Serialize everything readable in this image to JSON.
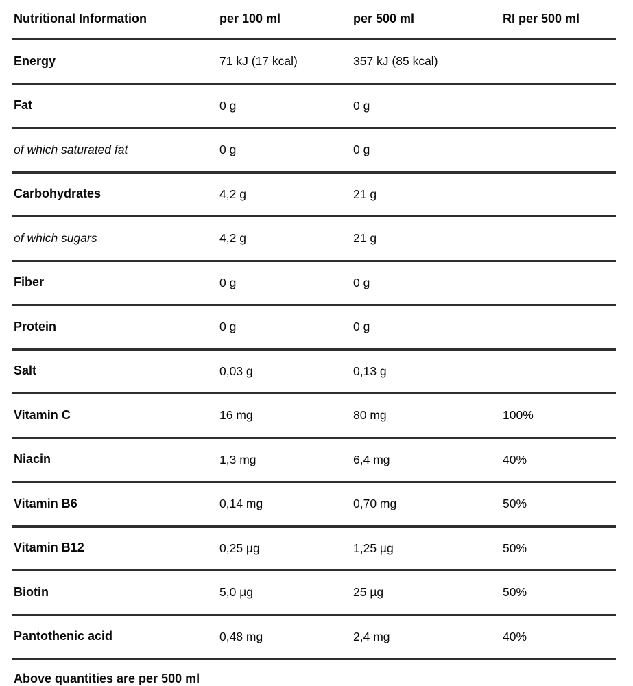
{
  "table": {
    "columns": [
      "Nutritional Information",
      "per 100 ml",
      "per 500 ml",
      "RI per 500 ml"
    ],
    "rows": [
      {
        "label": "Energy",
        "italic": false,
        "per100": "71 kJ (17 kcal)",
        "per500": "357 kJ (85 kcal)",
        "ri": ""
      },
      {
        "label": "Fat",
        "italic": false,
        "per100": "0 g",
        "per500": "0 g",
        "ri": ""
      },
      {
        "label": "of which saturated fat",
        "italic": true,
        "per100": "0 g",
        "per500": "0 g",
        "ri": ""
      },
      {
        "label": "Carbohydrates",
        "italic": false,
        "per100": "4,2 g",
        "per500": "21 g",
        "ri": ""
      },
      {
        "label": "of which sugars",
        "italic": true,
        "per100": "4,2 g",
        "per500": "21 g",
        "ri": ""
      },
      {
        "label": "Fiber",
        "italic": false,
        "per100": "0 g",
        "per500": "0 g",
        "ri": ""
      },
      {
        "label": "Protein",
        "italic": false,
        "per100": "0 g",
        "per500": "0 g",
        "ri": ""
      },
      {
        "label": "Salt",
        "italic": false,
        "per100": "0,03 g",
        "per500": "0,13 g",
        "ri": ""
      },
      {
        "label": "Vitamin C",
        "italic": false,
        "per100": "16 mg",
        "per500": "80 mg",
        "ri": "100%"
      },
      {
        "label": "Niacin",
        "italic": false,
        "per100": "1,3 mg",
        "per500": "6,4 mg",
        "ri": "40%"
      },
      {
        "label": "Vitamin B6",
        "italic": false,
        "per100": "0,14 mg",
        "per500": "0,70 mg",
        "ri": "50%"
      },
      {
        "label": "Vitamin B12",
        "italic": false,
        "per100": "0,25 µg",
        "per500": "1,25 µg",
        "ri": "50%"
      },
      {
        "label": "Biotin",
        "italic": false,
        "per100": "5,0 µg",
        "per500": "25 µg",
        "ri": "50%"
      },
      {
        "label": "Pantothenic acid",
        "italic": false,
        "per100": "0,48 mg",
        "per500": "2,4 mg",
        "ri": "40%"
      }
    ],
    "footer_note": "Above quantities are per 500 ml"
  },
  "colors": {
    "background": "#ffffff",
    "text": "#0a0a0a",
    "rule": "#2e2e2e"
  }
}
